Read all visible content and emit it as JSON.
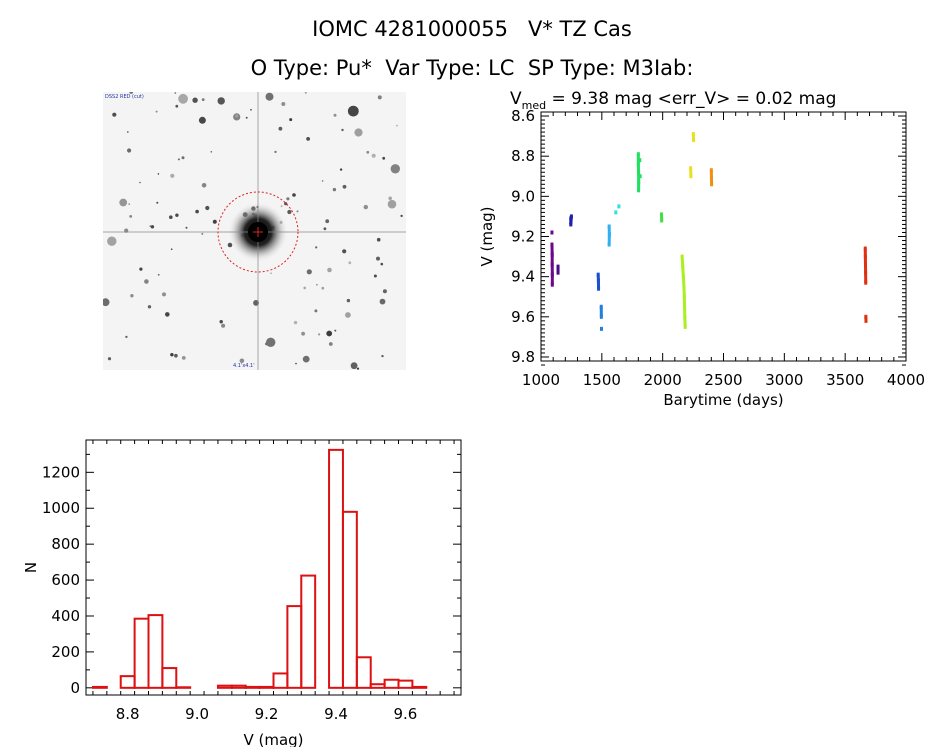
{
  "header": {
    "title": "IOMC 4281000055   V* TZ Cas",
    "subtitle": "O Type: Pu*  Var Type: LC  SP Type: M3Iab:"
  },
  "image_panel": {
    "top_left_label": "DSS2 RED (cut)",
    "bottom_center_label": "4.1'x4.1'",
    "marker_color": "#dd2222"
  },
  "light_curve": {
    "title_prefix": "V",
    "title_sub": "med",
    "title_rest": " = 9.38 mag <err_V> = 0.02 mag"
  },
  "chart_data": [
    {
      "type": "scatter",
      "title": "",
      "xlabel": "Barytime (days)",
      "ylabel": "V (mag)",
      "xlim": [
        1000,
        4000
      ],
      "ylim": [
        9.82,
        8.58
      ],
      "y_inverted": true,
      "xticks": [
        1000,
        1500,
        2000,
        2500,
        3000,
        3500,
        4000
      ],
      "yticks": [
        8.6,
        8.8,
        9.0,
        9.2,
        9.4,
        9.6,
        9.8
      ],
      "series": [
        {
          "color": "#6a0a8a",
          "points": [
            [
              1090,
              9.18
            ],
            [
              1090,
              9.24
            ],
            [
              1092,
              9.29
            ],
            [
              1092,
              9.34
            ],
            [
              1093,
              9.39
            ],
            [
              1093,
              9.44
            ]
          ]
        },
        {
          "color": "#4a0a8a",
          "points": [
            [
              1140,
              9.35
            ],
            [
              1140,
              9.38
            ]
          ]
        },
        {
          "color": "#2020b0",
          "points": [
            [
              1245,
              9.11
            ],
            [
              1245,
              9.14
            ],
            [
              1250,
              9.1
            ]
          ]
        },
        {
          "color": "#1a50d0",
          "points": [
            [
              1470,
              9.39
            ],
            [
              1472,
              9.42
            ],
            [
              1473,
              9.46
            ]
          ]
        },
        {
          "color": "#2080e0",
          "points": [
            [
              1495,
              9.55
            ],
            [
              1496,
              9.6
            ],
            [
              1497,
              9.66
            ]
          ]
        },
        {
          "color": "#30b0f0",
          "points": [
            [
              1560,
              9.15
            ],
            [
              1562,
              9.19
            ],
            [
              1560,
              9.24
            ]
          ]
        },
        {
          "color": "#30e0e0",
          "points": [
            [
              1615,
              9.08
            ],
            [
              1640,
              9.05
            ]
          ]
        },
        {
          "color": "#20e060",
          "points": [
            [
              1800,
              8.79
            ],
            [
              1800,
              8.84
            ],
            [
              1802,
              8.88
            ],
            [
              1803,
              8.93
            ],
            [
              1802,
              8.97
            ],
            [
              1812,
              8.82
            ],
            [
              1815,
              8.9
            ]
          ]
        },
        {
          "color": "#40e040",
          "points": [
            [
              1990,
              9.09
            ],
            [
              1992,
              9.12
            ]
          ]
        },
        {
          "color": "#aaf020",
          "points": [
            [
              2160,
              9.3
            ],
            [
              2165,
              9.35
            ],
            [
              2170,
              9.4
            ],
            [
              2175,
              9.45
            ],
            [
              2178,
              9.5
            ],
            [
              2180,
              9.55
            ],
            [
              2182,
              9.6
            ],
            [
              2185,
              9.65
            ]
          ]
        },
        {
          "color": "#e8e020",
          "points": [
            [
              2230,
              8.86
            ],
            [
              2232,
              8.9
            ],
            [
              2252,
              8.69
            ],
            [
              2254,
              8.72
            ]
          ]
        },
        {
          "color": "#f09010",
          "points": [
            [
              2400,
              8.87
            ],
            [
              2401,
              8.91
            ],
            [
              2402,
              8.94
            ]
          ]
        },
        {
          "color": "#e03010",
          "points": [
            [
              3665,
              9.26
            ],
            [
              3666,
              9.3
            ],
            [
              3667,
              9.34
            ],
            [
              3668,
              9.38
            ],
            [
              3669,
              9.43
            ],
            [
              3670,
              9.6
            ],
            [
              3671,
              9.62
            ]
          ]
        }
      ]
    },
    {
      "type": "bar",
      "title": "",
      "xlabel": "V (mag)",
      "ylabel": "N",
      "xlim": [
        8.68,
        9.76
      ],
      "ylim": [
        -40,
        1380
      ],
      "xticks": [
        8.8,
        9.0,
        9.2,
        9.4,
        9.6
      ],
      "yticks": [
        0,
        200,
        400,
        600,
        800,
        1000,
        1200
      ],
      "bin_width": 0.04,
      "bin_starts": [
        8.7,
        8.74,
        8.78,
        8.82,
        8.86,
        8.9,
        8.94,
        8.98,
        9.02,
        9.06,
        9.1,
        9.14,
        9.18,
        9.22,
        9.26,
        9.3,
        9.34,
        9.38,
        9.42,
        9.46,
        9.5,
        9.54,
        9.58,
        9.62,
        9.66
      ],
      "values": [
        5,
        0,
        65,
        385,
        405,
        110,
        3,
        0,
        0,
        12,
        12,
        5,
        5,
        80,
        455,
        625,
        0,
        1325,
        980,
        170,
        20,
        45,
        40,
        5,
        0
      ],
      "bar_color": "#dd1111"
    }
  ]
}
